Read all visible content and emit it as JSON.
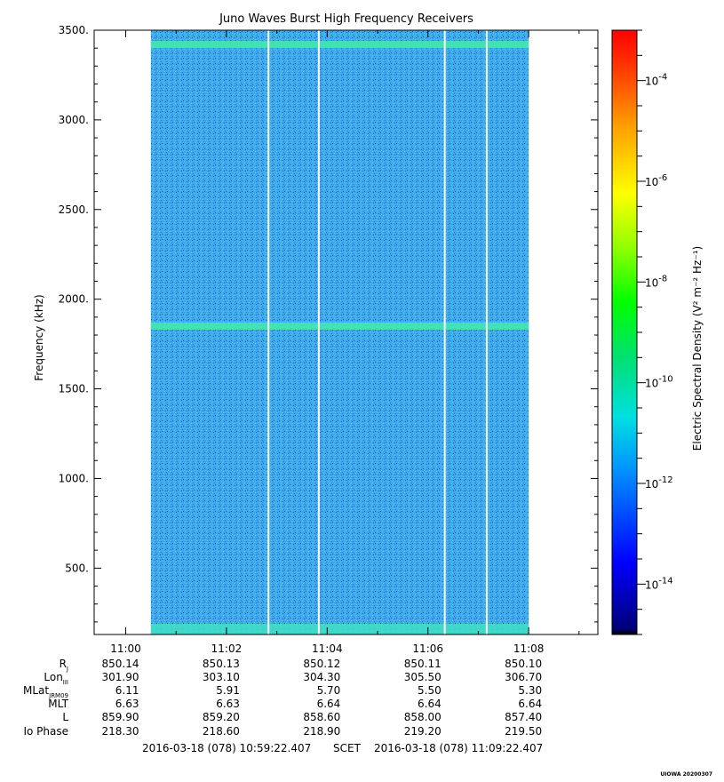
{
  "chart_data": {
    "type": "heatmap",
    "title": "Juno Waves Burst High Frequency Receivers",
    "xlabel": "",
    "ylabel": "Frequency (kHz)",
    "ylim": [
      130,
      3500
    ],
    "y_ticks": [
      500,
      1000,
      1500,
      2000,
      2500,
      3000,
      3500
    ],
    "y_tick_labels": [
      "500.",
      "1000.",
      "1500.",
      "2000.",
      "2500.",
      "3000.",
      "3500."
    ],
    "x_range": [
      "10:59:22.407",
      "11:09:22.407"
    ],
    "x_ticks": [
      "11:00",
      "11:02",
      "11:04",
      "11:06",
      "11:08"
    ],
    "data_span": [
      "11:00:30",
      "11:08:00"
    ],
    "data_gaps": [
      "11:02:50",
      "11:03:50",
      "11:06:20",
      "11:07:10"
    ],
    "emission_bands_khz": [
      1850,
      3420
    ],
    "background_level_exp": -12,
    "colorbar": {
      "label": "Electric Spectral Density (V² m⁻² Hz⁻¹)",
      "scale": "log",
      "range_exp": [
        -15,
        -3
      ],
      "tick_exps": [
        -4,
        -6,
        -8,
        -10,
        -12,
        -14
      ],
      "tick_labels": [
        "10",
        "10",
        "10",
        "10",
        "10",
        "10"
      ],
      "tick_sup": [
        "-4",
        "-6",
        "-8",
        "-10",
        "-12",
        "-14"
      ],
      "colormap": "rainbow"
    }
  },
  "ephemeris": {
    "row_labels": [
      "R",
      "Lon",
      "MLat",
      "MLT",
      "L",
      "Io Phase"
    ],
    "row_subs": [
      "J",
      "III",
      "JRM09",
      "",
      "",
      ""
    ],
    "columns": [
      [
        "850.14",
        "301.90",
        "6.11",
        "6.63",
        "859.90",
        "218.30"
      ],
      [
        "850.13",
        "303.10",
        "5.91",
        "6.63",
        "859.20",
        "218.60"
      ],
      [
        "850.12",
        "304.30",
        "5.70",
        "6.64",
        "858.60",
        "218.90"
      ],
      [
        "850.11",
        "305.50",
        "5.50",
        "6.64",
        "858.00",
        "219.20"
      ],
      [
        "850.10",
        "306.70",
        "5.30",
        "6.64",
        "857.40",
        "219.50"
      ]
    ]
  },
  "footer": {
    "start": "2016-03-18 (078) 10:59:22.407",
    "scet": "SCET",
    "end": "2016-03-18 (078) 11:09:22.407",
    "credit": "UIOWA 20200307"
  }
}
